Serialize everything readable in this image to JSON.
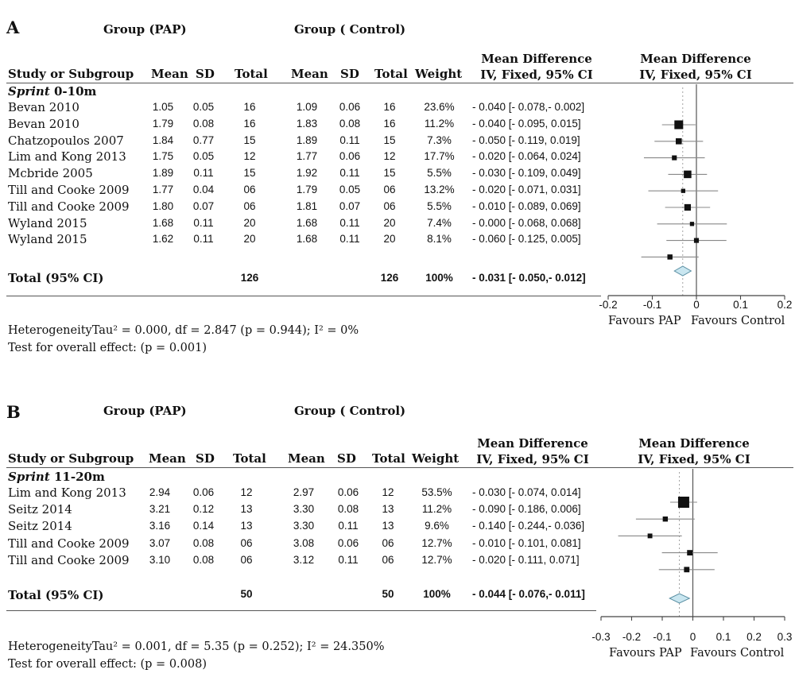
{
  "panels": [
    {
      "letter": "A",
      "group_pap": "Group (PAP)",
      "group_control": "Group ( Control)",
      "columns": {
        "study": "Study or Subgroup",
        "mean": "Mean",
        "sd": "SD",
        "total": "Total",
        "weight": "Weight",
        "md_title": "Mean Difference",
        "md_method": "IV, Fixed, 95% CI"
      },
      "subgroup_label": "Sprint",
      "subgroup_range": " 0-10m",
      "studies": [
        {
          "name": "Bevan 2010",
          "pap_mean": "1.05",
          "pap_sd": "0.05",
          "pap_total": "16",
          "ctl_mean": "1.09",
          "ctl_sd": "0.06",
          "ctl_total": "16",
          "weight": "23.6%",
          "ci_text": "- 0.040 [- 0.078,- 0.002]"
        },
        {
          "name": "Bevan 2010",
          "pap_mean": "1.79",
          "pap_sd": "0.08",
          "pap_total": "16",
          "ctl_mean": "1.83",
          "ctl_sd": "0.08",
          "ctl_total": "16",
          "weight": "11.2%",
          "ci_text": "- 0.040 [- 0.095,  0.015]"
        },
        {
          "name": "Chatzopoulos 2007",
          "pap_mean": "1.84",
          "pap_sd": "0.77",
          "pap_total": "15",
          "ctl_mean": "1.89",
          "ctl_sd": "0.11",
          "ctl_total": "15",
          "weight": "7.3%",
          "ci_text": "- 0.050 [- 0.119,  0.019]"
        },
        {
          "name": "Lim and Kong 2013",
          "pap_mean": "1.75",
          "pap_sd": "0.05",
          "pap_total": "12",
          "ctl_mean": "1.77",
          "ctl_sd": "0.06",
          "ctl_total": "12",
          "weight": "17.7%",
          "ci_text": "- 0.020 [- 0.064,  0.024]"
        },
        {
          "name": "Mcbride 2005",
          "pap_mean": "1.89",
          "pap_sd": "0.11",
          "pap_total": "15",
          "ctl_mean": "1.92",
          "ctl_sd": "0.11",
          "ctl_total": "15",
          "weight": "5.5%",
          "ci_text": "- 0.030 [- 0.109,  0.049]"
        },
        {
          "name": "Till and Cooke 2009",
          "pap_mean": "1.77",
          "pap_sd": "0.04",
          "pap_total": "06",
          "ctl_mean": "1.79",
          "ctl_sd": "0.05",
          "ctl_total": "06",
          "weight": "13.2%",
          "ci_text": "- 0.020 [- 0.071,  0.031]"
        },
        {
          "name": "Till and Cooke 2009",
          "pap_mean": "1.80",
          "pap_sd": "0.07",
          "pap_total": "06",
          "ctl_mean": "1.81",
          "ctl_sd": "0.07",
          "ctl_total": "06",
          "weight": "5.5%",
          "ci_text": "- 0.010 [- 0.089,  0.069]"
        },
        {
          "name": "Wyland 2015",
          "pap_mean": "1.68",
          "pap_sd": "0.11",
          "pap_total": "20",
          "ctl_mean": "1.68",
          "ctl_sd": "0.11",
          "ctl_total": "20",
          "weight": "7.4%",
          "ci_text": "- 0.000 [- 0.068,  0.068]"
        },
        {
          "name": "Wyland 2015",
          "pap_mean": "1.62",
          "pap_sd": "0.11",
          "pap_total": "20",
          "ctl_mean": "1.68",
          "ctl_sd": "0.11",
          "ctl_total": "20",
          "weight": "8.1%",
          "ci_text": "- 0.060 [- 0.125,  0.005]"
        }
      ],
      "total": {
        "label": "Total (95% CI)",
        "pap_total": "126",
        "ctl_total": "126",
        "weight": "100%",
        "ci_text": "- 0.031 [- 0.050,- 0.012]"
      },
      "heterogeneity": "HeterogeneityTau² = 0.000, df = 2.847 (p = 0.944); I² = 0%",
      "overall_effect": "Test for overall effect: (p = 0.001)",
      "favours_left": "Favours PAP",
      "favours_right": "Favours Control"
    },
    {
      "letter": "B",
      "group_pap": "Group (PAP)",
      "group_control": "Group ( Control)",
      "columns": {
        "study": "Study or Subgroup",
        "mean": "Mean",
        "sd": "SD",
        "total": "Total",
        "weight": "Weight",
        "md_title": "Mean Difference",
        "md_method": "IV, Fixed, 95% CI"
      },
      "subgroup_label": "Sprint",
      "subgroup_range": " 11-20m",
      "studies": [
        {
          "name": "Lim and Kong 2013",
          "pap_mean": "2.94",
          "pap_sd": "0.06",
          "pap_total": "12",
          "ctl_mean": "2.97",
          "ctl_sd": "0.06",
          "ctl_total": "12",
          "weight": "53.5%",
          "ci_text": "- 0.030 [- 0.074,  0.014]"
        },
        {
          "name": "Seitz 2014",
          "pap_mean": "3.21",
          "pap_sd": "0.12",
          "pap_total": "13",
          "ctl_mean": "3.30",
          "ctl_sd": "0.08",
          "ctl_total": "13",
          "weight": "11.2%",
          "ci_text": "- 0.090 [- 0.186,  0.006]"
        },
        {
          "name": "Seitz 2014",
          "pap_mean": "3.16",
          "pap_sd": "0.14",
          "pap_total": "13",
          "ctl_mean": "3.30",
          "ctl_sd": "0.11",
          "ctl_total": "13",
          "weight": "9.6%",
          "ci_text": "- 0.140 [- 0.244,- 0.036]"
        },
        {
          "name": "Till and Cooke 2009",
          "pap_mean": "3.07",
          "pap_sd": "0.08",
          "pap_total": "06",
          "ctl_mean": "3.08",
          "ctl_sd": "0.06",
          "ctl_total": "06",
          "weight": "12.7%",
          "ci_text": "- 0.010 [- 0.101,  0.081]"
        },
        {
          "name": "Till and Cooke 2009",
          "pap_mean": "3.10",
          "pap_sd": "0.08",
          "pap_total": "06",
          "ctl_mean": "3.12",
          "ctl_sd": "0.11",
          "ctl_total": "06",
          "weight": "12.7%",
          "ci_text": "- 0.020 [- 0.111,  0.071]"
        }
      ],
      "total": {
        "label": "Total (95% CI)",
        "pap_total": "50",
        "ctl_total": "50",
        "weight": "100%",
        "ci_text": "- 0.044 [- 0.076,- 0.011]"
      },
      "heterogeneity": "HeterogeneityTau² = 0.001, df = 5.35 (p = 0.252); I² = 24.350%",
      "overall_effect": "Test for overall effect: (p = 0.008)",
      "favours_left": "Favours PAP",
      "favours_right": "Favours Control"
    }
  ],
  "chart_data": [
    {
      "type": "forest",
      "panel": "A",
      "xlim": [
        -0.2,
        0.2
      ],
      "ticks": [
        -0.2,
        -0.1,
        0,
        0.1,
        0.2
      ],
      "tick_labels": [
        "-0.2",
        "-0.1",
        "0",
        "0.1",
        "0.2"
      ],
      "studies": [
        {
          "md": -0.04,
          "lo": -0.078,
          "hi": -0.002,
          "weight": 23.6
        },
        {
          "md": -0.04,
          "lo": -0.095,
          "hi": 0.015,
          "weight": 11.2
        },
        {
          "md": -0.05,
          "lo": -0.119,
          "hi": 0.019,
          "weight": 7.3
        },
        {
          "md": -0.02,
          "lo": -0.064,
          "hi": 0.024,
          "weight": 17.7
        },
        {
          "md": -0.03,
          "lo": -0.109,
          "hi": 0.049,
          "weight": 5.5
        },
        {
          "md": -0.02,
          "lo": -0.071,
          "hi": 0.031,
          "weight": 13.2
        },
        {
          "md": -0.01,
          "lo": -0.089,
          "hi": 0.069,
          "weight": 5.5
        },
        {
          "md": 0.0,
          "lo": -0.068,
          "hi": 0.068,
          "weight": 7.4
        },
        {
          "md": -0.06,
          "lo": -0.125,
          "hi": 0.005,
          "weight": 8.1
        }
      ],
      "total": {
        "md": -0.031,
        "lo": -0.05,
        "hi": -0.012
      },
      "colors": {
        "diamond_fill": "#c9e6f0",
        "diamond_stroke": "#5a8fa3",
        "marker": "#111111",
        "ci_line": "#888888"
      }
    },
    {
      "type": "forest",
      "panel": "B",
      "xlim": [
        -0.3,
        0.3
      ],
      "ticks": [
        -0.3,
        -0.2,
        -0.1,
        0,
        0.1,
        0.2,
        0.3
      ],
      "tick_labels": [
        "-0.3",
        "-0.2",
        "-0.1",
        "0",
        "0.1",
        "0.2",
        "0.3"
      ],
      "studies": [
        {
          "md": -0.03,
          "lo": -0.074,
          "hi": 0.014,
          "weight": 53.5
        },
        {
          "md": -0.09,
          "lo": -0.186,
          "hi": 0.006,
          "weight": 11.2
        },
        {
          "md": -0.14,
          "lo": -0.244,
          "hi": -0.036,
          "weight": 9.6
        },
        {
          "md": -0.01,
          "lo": -0.101,
          "hi": 0.081,
          "weight": 12.7
        },
        {
          "md": -0.02,
          "lo": -0.111,
          "hi": 0.071,
          "weight": 12.7
        }
      ],
      "total": {
        "md": -0.044,
        "lo": -0.076,
        "hi": -0.011
      },
      "colors": {
        "diamond_fill": "#c9e6f0",
        "diamond_stroke": "#5a8fa3",
        "marker": "#111111",
        "ci_line": "#888888"
      }
    }
  ]
}
